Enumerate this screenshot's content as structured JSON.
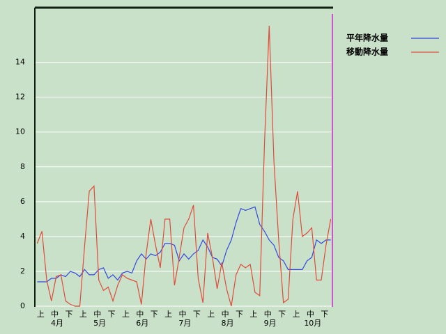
{
  "chart_data": {
    "type": "line",
    "categories": [
      null,
      "上",
      null,
      null,
      "中",
      null,
      null,
      "下",
      null,
      null,
      "上",
      null,
      null,
      "中",
      null,
      null,
      "下",
      null,
      null,
      "上",
      null,
      null,
      "中",
      null,
      null,
      "下",
      null,
      null,
      "上",
      null,
      null,
      "中",
      null,
      null,
      "下",
      null,
      null,
      "上",
      null,
      null,
      "中",
      null,
      null,
      "下",
      null,
      null,
      "上",
      null,
      null,
      "中",
      null,
      null,
      "下",
      null,
      null,
      "上",
      null,
      null,
      "中",
      null,
      null,
      "下",
      null
    ],
    "x_group_labels": [
      "4月",
      "5月",
      "6月",
      "7月",
      "8月",
      "9月",
      "10月"
    ],
    "series": [
      {
        "name": "平年降水量",
        "color": "#3348e0",
        "values": [
          1.4,
          1.4,
          1.4,
          1.6,
          1.6,
          1.8,
          1.7,
          2,
          1.9,
          1.7,
          2.1,
          1.8,
          1.8,
          2.1,
          2.2,
          1.6,
          1.8,
          1.5,
          1.9,
          2,
          1.9,
          2.6,
          3,
          2.7,
          3,
          2.9,
          3.1,
          3.6,
          3.6,
          3.5,
          2.6,
          3,
          2.7,
          3,
          3.2,
          3.8,
          3.4,
          2.8,
          2.7,
          2.3,
          3.2,
          3.8,
          4.8,
          5.6,
          5.5,
          5.6,
          5.7,
          4.7,
          4.3,
          3.8,
          3.5,
          2.8,
          2.6,
          2.1,
          2.1,
          2.1,
          2.1,
          2.6,
          2.8,
          3.8,
          3.6,
          3.8,
          3.8
        ]
      },
      {
        "name": "移動降水量",
        "color": "#e04a3a",
        "values": [
          3.6,
          4.3,
          1.5,
          0.3,
          1.7,
          1.8,
          0.3,
          0.1,
          0,
          0,
          3.4,
          6.6,
          6.9,
          1.5,
          0.9,
          1.1,
          0.3,
          1.2,
          1.8,
          1.6,
          1.5,
          1.4,
          0.1,
          3,
          5,
          3.5,
          2.2,
          5,
          5,
          1.2,
          2.8,
          4.5,
          5,
          5.8,
          1.6,
          0.2,
          4.2,
          2.8,
          1,
          2.5,
          1,
          0,
          1.8,
          2.4,
          2.2,
          2.4,
          0.8,
          0.6,
          9.3,
          16.1,
          8.3,
          3.8,
          0.2,
          0.4,
          5,
          6.6,
          4,
          4.2,
          4.5,
          1.5,
          1.5,
          3.5,
          5
        ]
      }
    ],
    "ylim": [
      0,
      17.1
    ],
    "yticks": [
      0,
      2,
      4,
      6,
      8,
      10,
      12,
      14
    ],
    "grid": true
  }
}
